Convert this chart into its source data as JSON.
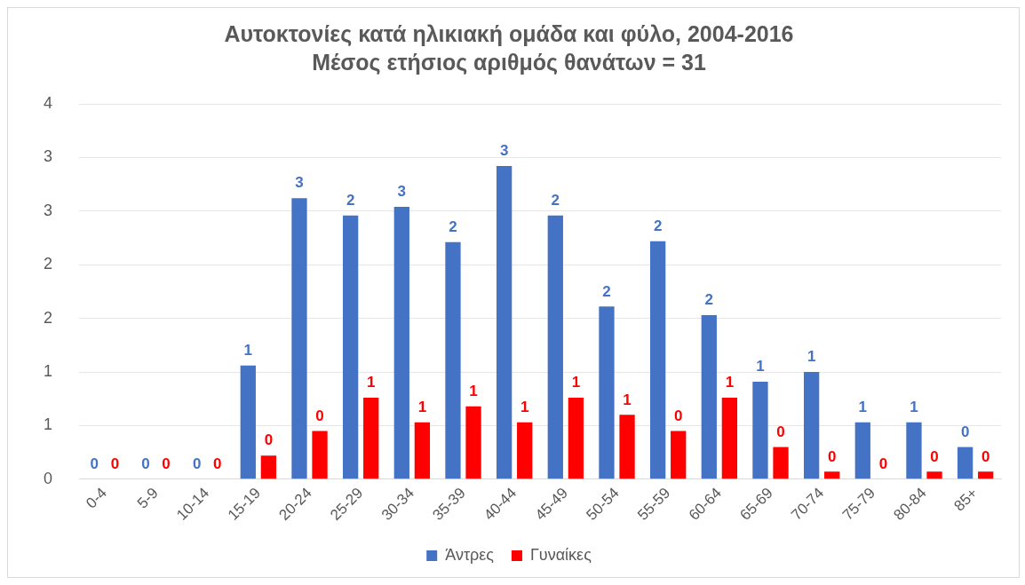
{
  "chart_data": {
    "type": "bar",
    "title": "Αυτοκτονίες κατά ηλικιακή ομάδα και φύλο, 2004-2016",
    "subtitle": "Μέσος ετήσιος αριθμός θανάτων = 31",
    "categories": [
      "0-4",
      "5-9",
      "10-14",
      "15-19",
      "20-24",
      "25-29",
      "30-34",
      "35-39",
      "40-44",
      "45-49",
      "50-54",
      "55-59",
      "60-64",
      "65-69",
      "70-74",
      "75-79",
      "80-84",
      "85+"
    ],
    "series": [
      {
        "name": "Άντρες",
        "color": "#4472c4",
        "values": [
          0,
          0,
          0,
          1.06,
          2.62,
          2.46,
          2.54,
          2.21,
          2.92,
          2.46,
          1.61,
          2.22,
          1.53,
          0.91,
          1.0,
          0.53,
          0.53,
          0.3
        ],
        "value_labels": [
          "0",
          "0",
          "0",
          "1",
          "3",
          "2",
          "3",
          "2",
          "3",
          "2",
          "2",
          "2",
          "2",
          "1",
          "1",
          "1",
          "1",
          "0"
        ]
      },
      {
        "name": "Γυναίκες",
        "color": "#ff0000",
        "values": [
          0,
          0,
          0,
          0.22,
          0.45,
          0.76,
          0.53,
          0.68,
          0.53,
          0.76,
          0.6,
          0.45,
          0.76,
          0.3,
          0.07,
          0,
          0.07,
          0.07
        ],
        "value_labels": [
          "0",
          "0",
          "0",
          "0",
          "0",
          "1",
          "1",
          "1",
          "1",
          "1",
          "1",
          "0",
          "1",
          "0",
          "0",
          "0",
          "0",
          "0"
        ]
      }
    ],
    "ylim": [
      0,
      3.5
    ],
    "yticks": [
      0,
      {
        "value": 0.5,
        "label": "1"
      },
      1,
      {
        "value": 1.5,
        "label": "2"
      },
      2,
      {
        "value": 2.5,
        "label": "3"
      },
      3,
      {
        "value": 3.5,
        "label": "4"
      }
    ],
    "grid": "y",
    "legend": "bottom"
  }
}
